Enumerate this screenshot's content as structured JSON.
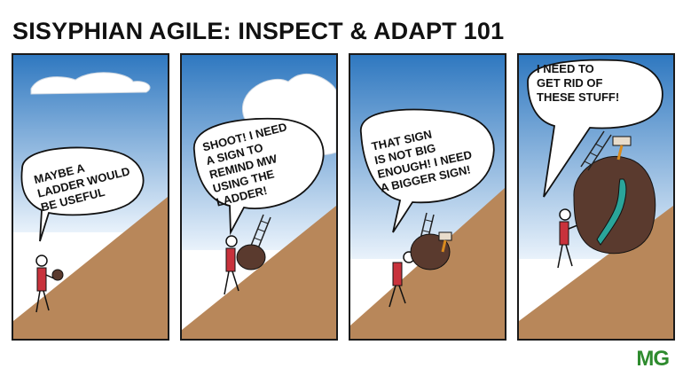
{
  "comic": {
    "title": "SISYPHIAN AGILE: INSPECT & ADAPT 101",
    "panels": [
      {
        "speech": "MAYBE A\nLADDER WOULD\nBE USEFUL"
      },
      {
        "speech": "SHOOT! I NEED\nA SIGN TO\nREMIND MW\nUSING THE\nLADDER!"
      },
      {
        "speech": "THAT SIGN\nIS NOT BIG\nENOUGH! I NEED\nA BIGGER SIGN!"
      },
      {
        "speech": "I NEED TO\nGET RID OF\nTHESE STUFF!"
      }
    ],
    "signature": "MG"
  },
  "colors": {
    "sky": "#3f86c8",
    "hill": "#b8875a",
    "boulder": "#5a3a2e",
    "shirt": "#c8323c",
    "sign": "#2aa59a"
  }
}
